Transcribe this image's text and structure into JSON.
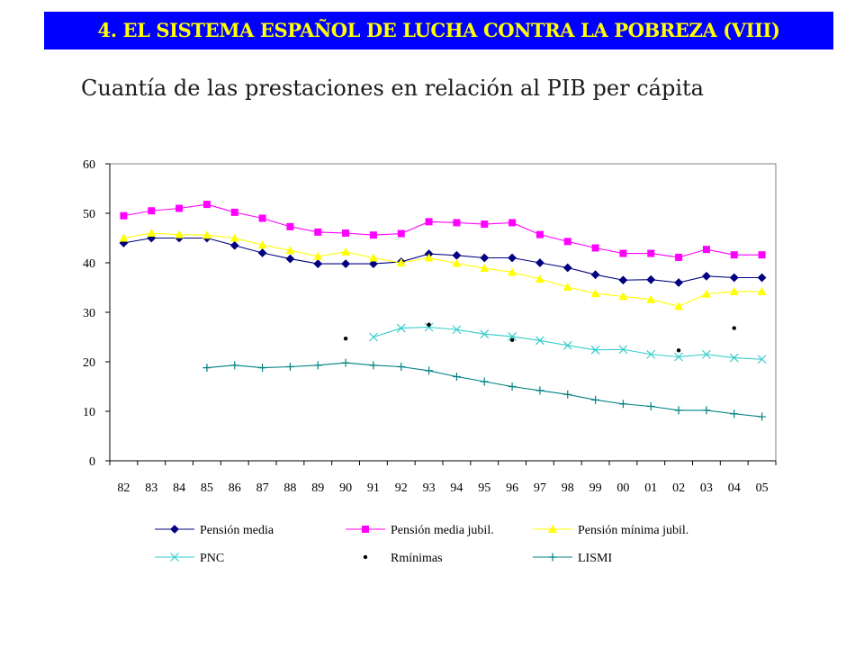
{
  "header": {
    "banner_title": "4.  EL SISTEMA ESPAÑOL DE LUCHA CONTRA LA POBREZA (VIII)",
    "subtitle": "Cuantía de las prestaciones en relación al PIB per cápita"
  },
  "colors": {
    "banner_bg": "#0000ff",
    "banner_text": "#ffff00"
  },
  "chart_data": {
    "type": "line",
    "categories": [
      "82",
      "83",
      "84",
      "85",
      "86",
      "87",
      "88",
      "89",
      "90",
      "91",
      "92",
      "93",
      "94",
      "95",
      "96",
      "97",
      "98",
      "99",
      "00",
      "01",
      "02",
      "03",
      "04",
      "05"
    ],
    "ylim": [
      0,
      60
    ],
    "yticks": [
      "0",
      "10",
      "20",
      "30",
      "40",
      "50",
      "60"
    ],
    "grid": false,
    "legend_position": "bottom",
    "series": [
      {
        "name": "Pensión media",
        "color": "#000080",
        "marker": "diamond",
        "line": true,
        "values": [
          44,
          45,
          45,
          45,
          43.5,
          42,
          40.8,
          39.8,
          39.8,
          39.8,
          40.2,
          41.8,
          41.5,
          41,
          41,
          40,
          39,
          37.6,
          36.5,
          36.6,
          36,
          37.3,
          37,
          37
        ]
      },
      {
        "name": "Pensión media jubil.",
        "color": "#ff00ff",
        "marker": "square",
        "line": true,
        "values": [
          49.5,
          50.5,
          51,
          51.8,
          50.2,
          49,
          47.3,
          46.2,
          46,
          45.6,
          45.9,
          48.3,
          48.1,
          47.8,
          48.1,
          45.7,
          44.3,
          43,
          41.9,
          41.9,
          41.1,
          42.7,
          41.6,
          41.6
        ]
      },
      {
        "name": "Pensión mínima jubil.",
        "color": "#ffff00",
        "marker": "triangle",
        "line": true,
        "values": [
          45,
          46,
          45.7,
          45.6,
          45,
          43.6,
          42.5,
          41.3,
          42.2,
          41,
          40,
          41,
          39.9,
          38.9,
          38.1,
          36.7,
          35.1,
          33.8,
          33.2,
          32.6,
          31.2,
          33.7,
          34.2,
          34.2
        ]
      },
      {
        "name": "PNC",
        "color": "#33cccc",
        "marker": "x",
        "line": true,
        "values": [
          null,
          null,
          null,
          null,
          null,
          null,
          null,
          null,
          null,
          25,
          26.8,
          27,
          26.5,
          25.6,
          25.1,
          24.3,
          23.3,
          22.4,
          22.5,
          21.5,
          21,
          21.5,
          20.8,
          20.5
        ]
      },
      {
        "name": "Rmínimas",
        "color": "#000000",
        "marker": "dot",
        "line": false,
        "values": [
          null,
          null,
          null,
          null,
          null,
          null,
          null,
          null,
          24.7,
          null,
          null,
          27.5,
          null,
          null,
          24.4,
          null,
          null,
          null,
          null,
          null,
          22.3,
          null,
          26.8,
          null
        ]
      },
      {
        "name": "LISMI",
        "color": "#008080",
        "marker": "plus",
        "line": true,
        "values": [
          null,
          null,
          null,
          18.8,
          19.3,
          18.8,
          19,
          19.3,
          19.8,
          19.3,
          19,
          18.2,
          17,
          16,
          15,
          14.2,
          13.4,
          12.3,
          11.5,
          11,
          10.2,
          10.2,
          9.5,
          8.9
        ]
      }
    ]
  }
}
